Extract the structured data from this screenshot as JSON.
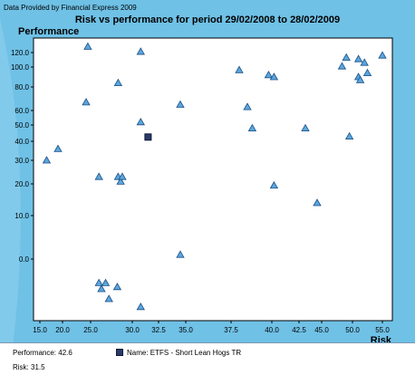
{
  "provider_text": "Data Provided by Financial Express 2009",
  "info": {
    "performance": "Performance: 42.6",
    "risk": "Risk: 31.5",
    "name": "Name: ETFS - Short Lean Hogs TR"
  },
  "colors": {
    "background": "#6fc1e6",
    "plot_background": "#ffffff",
    "triangle_fill": "#5aa6dc",
    "triangle_stroke": "#1c4f86",
    "highlight_fill": "#2b3a66"
  },
  "chart_data": {
    "type": "scatter",
    "title": "Risk vs performance for period 29/02/2008 to 28/02/2009",
    "xlabel": "Risk",
    "ylabel": "Performance",
    "xlim": [
      15.0,
      57.0
    ],
    "x_ticks": [
      "15.0",
      "20.0",
      "25.0",
      "30.0",
      "32.5",
      "35.0",
      "37.5",
      "40.0",
      "42.5",
      "45.0",
      "50.0",
      "55.0"
    ],
    "y_ticks": [
      "120.0",
      "100.0",
      "80.0",
      "60.0",
      "50.0",
      "40.0",
      "30.0",
      "20.0",
      "10.0",
      "0.0"
    ],
    "grid": false,
    "series": [
      {
        "marker": "triangle",
        "points": [
          {
            "x": 16.5,
            "y": 30.0
          },
          {
            "x": 19.0,
            "y": 36.0
          },
          {
            "x": 24.5,
            "y": 127.0
          },
          {
            "x": 24.2,
            "y": 67.0
          },
          {
            "x": 26.0,
            "y": 23.0
          },
          {
            "x": 26.0,
            "y": -12.0
          },
          {
            "x": 26.3,
            "y": -15.0
          },
          {
            "x": 26.8,
            "y": -12.0
          },
          {
            "x": 27.2,
            "y": -20.0
          },
          {
            "x": 28.3,
            "y": 84.0
          },
          {
            "x": 28.3,
            "y": 23.0
          },
          {
            "x": 28.6,
            "y": 21.0
          },
          {
            "x": 28.8,
            "y": 23.0
          },
          {
            "x": 28.2,
            "y": -14.0
          },
          {
            "x": 30.8,
            "y": 121.0
          },
          {
            "x": 30.8,
            "y": 52.0
          },
          {
            "x": 30.8,
            "y": -24.0
          },
          {
            "x": 34.5,
            "y": 65.0
          },
          {
            "x": 34.5,
            "y": 1.0
          },
          {
            "x": 38.0,
            "y": 97.0
          },
          {
            "x": 38.5,
            "y": 63.0
          },
          {
            "x": 38.8,
            "y": 48.0
          },
          {
            "x": 39.8,
            "y": 92.0
          },
          {
            "x": 40.2,
            "y": 90.0
          },
          {
            "x": 40.2,
            "y": 19.5
          },
          {
            "x": 43.2,
            "y": 48.0
          },
          {
            "x": 44.5,
            "y": 14.0
          },
          {
            "x": 48.3,
            "y": 101.0
          },
          {
            "x": 49.0,
            "y": 113.0
          },
          {
            "x": 49.5,
            "y": 43.0
          },
          {
            "x": 51.0,
            "y": 111.0
          },
          {
            "x": 51.0,
            "y": 90.0
          },
          {
            "x": 51.3,
            "y": 87.0
          },
          {
            "x": 52.0,
            "y": 106.0
          },
          {
            "x": 52.5,
            "y": 94.0
          },
          {
            "x": 55.0,
            "y": 116.0
          }
        ]
      },
      {
        "marker": "square",
        "points": [
          {
            "x": 31.5,
            "y": 42.6
          }
        ]
      }
    ]
  }
}
